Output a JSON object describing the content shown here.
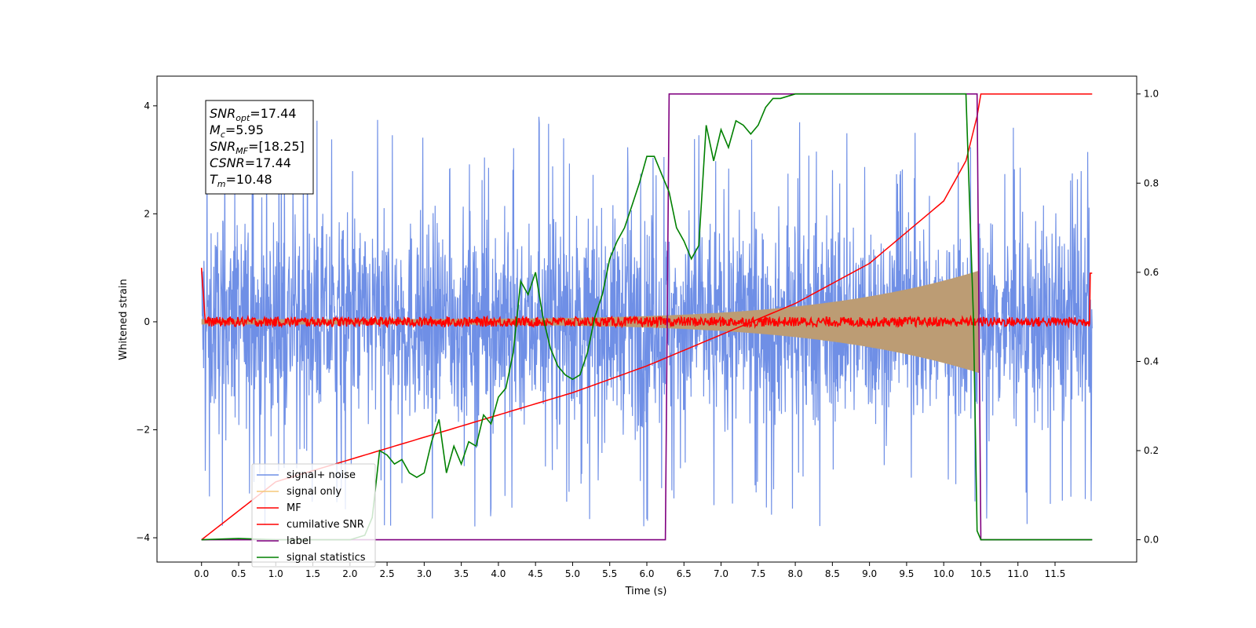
{
  "chart_data": {
    "type": "line",
    "xlabel": "Time (s)",
    "ylabel": "Whitened strain",
    "xlim": [
      -0.6,
      12.6
    ],
    "ylim": [
      -4.45,
      4.55
    ],
    "y2lim": [
      -0.05,
      1.04
    ],
    "x_ticks": [
      "0.0",
      "0.5",
      "1.0",
      "1.5",
      "2.0",
      "2.5",
      "3.0",
      "3.5",
      "4.0",
      "4.5",
      "5.0",
      "5.5",
      "6.0",
      "6.5",
      "7.0",
      "7.5",
      "8.0",
      "8.5",
      "9.0",
      "9.5",
      "10.0",
      "10.5",
      "11.0",
      "11.5"
    ],
    "y_ticks": [
      "4",
      "2",
      "0",
      "−2",
      "−4"
    ],
    "y2_ticks": [
      "1.0",
      "0.8",
      "0.6",
      "0.4",
      "0.2",
      "0.0"
    ],
    "annotation": {
      "lines": [
        {
          "sym": "SNR",
          "sub": "opt",
          "value": "=17.44"
        },
        {
          "sym": "M",
          "sub": "c",
          "value": "=5.95"
        },
        {
          "sym": "SNR",
          "sub": "MF",
          "value": "=[18.25]"
        },
        {
          "sym": "CSNR",
          "sub": "",
          "value": "=17.44"
        },
        {
          "sym": "T",
          "sub": "m",
          "value": "=10.48"
        }
      ]
    },
    "series": [
      {
        "name": "signal+ noise",
        "color": "#6f8fe6",
        "axis": "left",
        "t_range": [
          0,
          12
        ],
        "envelope": [
          -2.6,
          2.6
        ],
        "peak": 3.9
      },
      {
        "name": "signal only",
        "color": "#f5c87a",
        "axis": "left",
        "t_range": [
          0,
          10.48
        ],
        "amplitude_start": 0.05,
        "amplitude_end": 0.95
      },
      {
        "name": "MF",
        "color": "#ff0000",
        "axis": "left",
        "t_range": [
          0,
          12
        ],
        "start": 1.0,
        "level": 0.0,
        "end": 0.9
      },
      {
        "name": "cumilative SNR",
        "color": "#ff0000",
        "axis": "right",
        "x": [
          0,
          1,
          2,
          3,
          4,
          5,
          6,
          7,
          8,
          9,
          10,
          10.3,
          10.48,
          10.5,
          12
        ],
        "y": [
          0.0,
          0.13,
          0.18,
          0.23,
          0.28,
          0.33,
          0.39,
          0.46,
          0.53,
          0.62,
          0.76,
          0.85,
          0.97,
          1.0,
          1.0
        ]
      },
      {
        "name": "label",
        "color": "#800080",
        "axis": "right",
        "x": [
          0,
          6.25,
          6.3,
          10.45,
          10.5,
          12
        ],
        "y": [
          0,
          0,
          1,
          1,
          0,
          0
        ]
      },
      {
        "name": "signal statistics",
        "color": "#008000",
        "axis": "right",
        "x": [
          0,
          0.5,
          1.0,
          1.5,
          2.0,
          2.2,
          2.3,
          2.4,
          2.5,
          2.6,
          2.7,
          2.8,
          2.9,
          3.0,
          3.1,
          3.2,
          3.3,
          3.4,
          3.5,
          3.6,
          3.7,
          3.8,
          3.9,
          4.0,
          4.1,
          4.2,
          4.3,
          4.4,
          4.5,
          4.6,
          4.7,
          4.8,
          4.9,
          5.0,
          5.1,
          5.2,
          5.3,
          5.4,
          5.5,
          5.6,
          5.7,
          5.8,
          5.9,
          6.0,
          6.1,
          6.2,
          6.3,
          6.4,
          6.5,
          6.6,
          6.7,
          6.8,
          6.9,
          7.0,
          7.1,
          7.2,
          7.3,
          7.4,
          7.5,
          7.6,
          7.7,
          7.8,
          8.0,
          8.2,
          8.5,
          9.0,
          9.5,
          10.0,
          10.3,
          10.4,
          10.45,
          10.5,
          12
        ],
        "y": [
          0.0,
          0.003,
          0.0,
          0.0,
          0.0,
          0.01,
          0.05,
          0.2,
          0.19,
          0.17,
          0.18,
          0.15,
          0.14,
          0.15,
          0.22,
          0.27,
          0.15,
          0.21,
          0.17,
          0.22,
          0.21,
          0.28,
          0.26,
          0.32,
          0.34,
          0.42,
          0.58,
          0.55,
          0.6,
          0.5,
          0.43,
          0.39,
          0.37,
          0.36,
          0.37,
          0.42,
          0.5,
          0.55,
          0.63,
          0.67,
          0.7,
          0.75,
          0.8,
          0.86,
          0.86,
          0.82,
          0.78,
          0.7,
          0.67,
          0.63,
          0.66,
          0.93,
          0.85,
          0.92,
          0.88,
          0.94,
          0.93,
          0.91,
          0.93,
          0.97,
          0.99,
          0.99,
          1.0,
          1.0,
          1.0,
          1.0,
          1.0,
          1.0,
          1.0,
          0.5,
          0.02,
          0.0,
          0.0
        ]
      }
    ],
    "legend": {
      "location": "lower-left"
    }
  }
}
